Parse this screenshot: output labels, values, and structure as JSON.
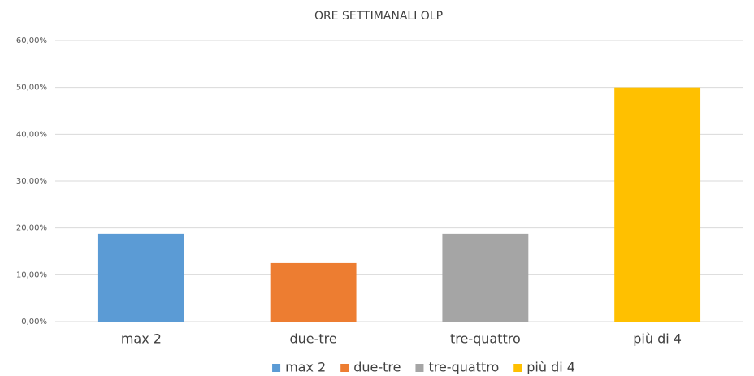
{
  "chart_data": {
    "type": "bar",
    "title": "ORE SETTIMANALI OLP",
    "categories": [
      "max 2",
      "due-tre",
      "tre-quattro",
      "più di 4"
    ],
    "values": [
      18.75,
      12.5,
      18.75,
      50
    ],
    "colors": [
      "#5b9bd5",
      "#ed7d31",
      "#a5a5a5",
      "#ffc000"
    ],
    "ylim": [
      0,
      60
    ],
    "yticks": [
      {
        "value": 0,
        "label": "0,00%"
      },
      {
        "value": 10,
        "label": "10,00%"
      },
      {
        "value": 20,
        "label": "20,00%"
      },
      {
        "value": 30,
        "label": "30,00%"
      },
      {
        "value": 40,
        "label": "40,00%"
      },
      {
        "value": 50,
        "label": "50,00%"
      },
      {
        "value": 60,
        "label": "60,00%"
      }
    ],
    "grid": true,
    "legend": "bottom"
  }
}
